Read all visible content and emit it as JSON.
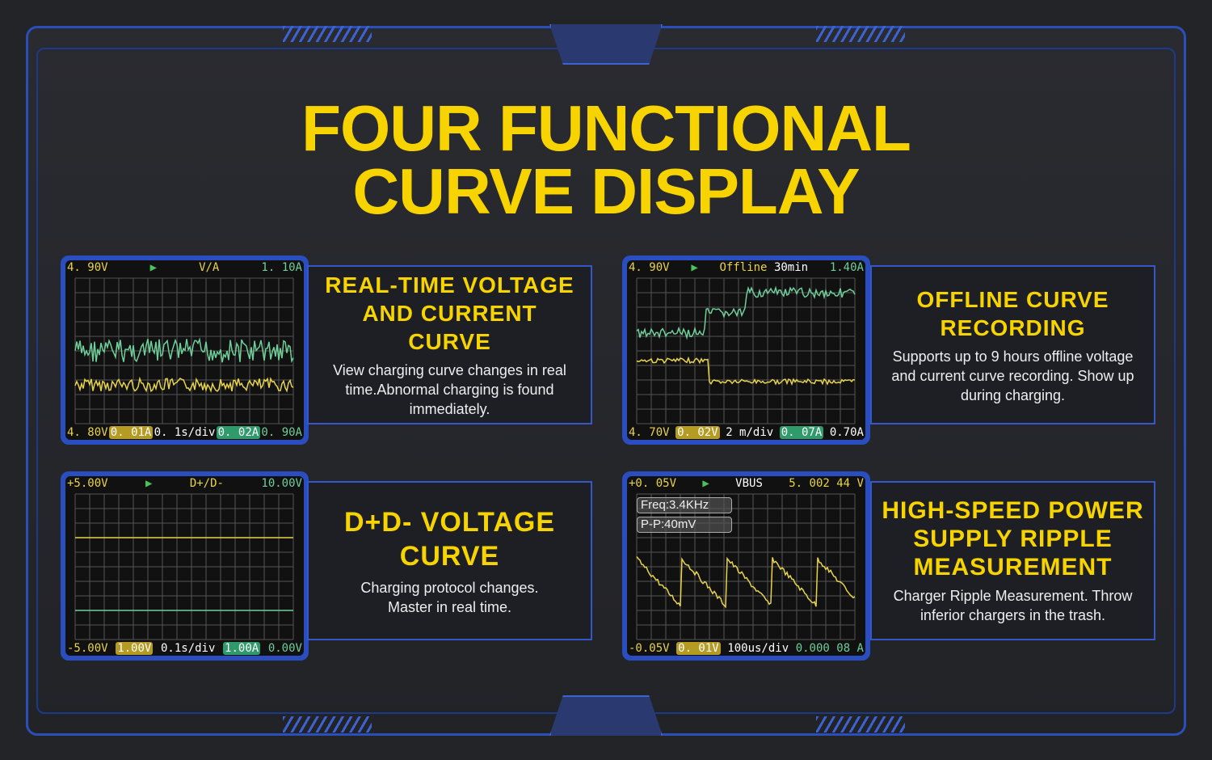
{
  "title": [
    "FOUR FUNCTIONAL",
    "CURVE DISPLAY"
  ],
  "colors": {
    "accent": "#f7d400",
    "frame": "#2b4fb8",
    "voltage": "#e8d44a",
    "current": "#6fcf9a"
  },
  "panels": [
    {
      "screen": {
        "top_left": "4. 90V",
        "mode": "V/A",
        "top_right": "1. 10A",
        "bot": [
          "4. 80V",
          "0. 01A",
          "0. 1s/div",
          "0. 02A",
          "0. 90A"
        ]
      },
      "heading": "REAL-TIME VOLTAGE AND CURRENT CURVE",
      "desc": "View charging curve changes in real time.Abnormal charging is found immediately."
    },
    {
      "screen": {
        "top_left": "4. 90V",
        "mode": "Offline",
        "mode2": "30min",
        "top_right": "1.40A",
        "bot": [
          "4. 70V",
          "0. 02V",
          "2 m/div",
          "0. 07A",
          "0.70A"
        ]
      },
      "heading": "OFFLINE CURVE RECORDING",
      "desc": "Supports up to 9 hours offline voltage and current curve recording. Show up during charging."
    },
    {
      "screen": {
        "top_left": "+5.00V",
        "mode": "D+/D-",
        "top_right": "10.00V",
        "bot": [
          "-5.00V",
          "1.00V",
          "0.1s/div",
          "1.00A",
          "0.00V"
        ]
      },
      "heading": "D+D- VOLTAGE CURVE",
      "desc": "Charging protocol changes. Master in real time."
    },
    {
      "screen": {
        "top_left": "+0. 05V",
        "mode": "VBUS",
        "top_right": "5. 002  44  V",
        "bot": [
          "-0.05V",
          "0. 01V",
          "100us/div",
          "0.000  08  A",
          ""
        ],
        "freq": "Freq:3.4KHz",
        "pp": "P-P:40mV"
      },
      "heading": "HIGH-SPEED POWER SUPPLY RIPPLE MEASUREMENT",
      "desc": "Charger Ripple Measurement. Throw inferior chargers in the trash."
    }
  ]
}
